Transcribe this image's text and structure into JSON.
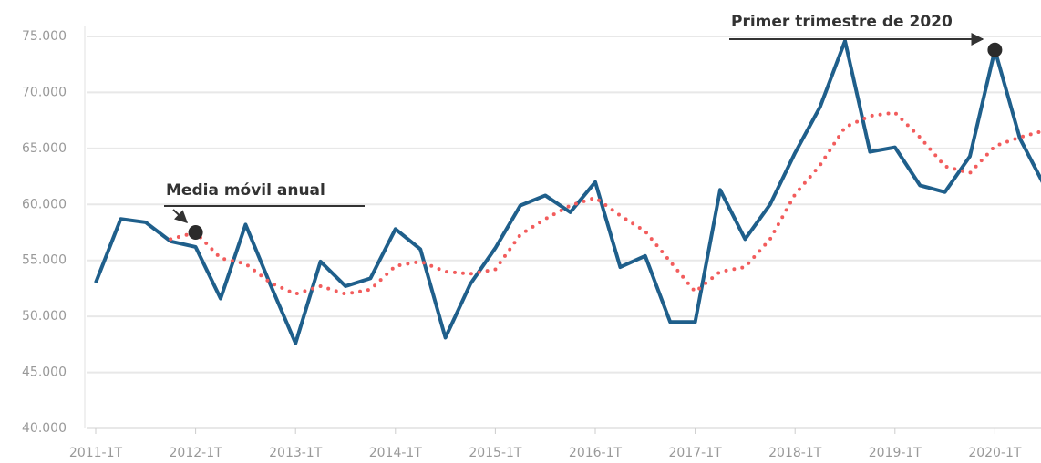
{
  "chart_data": {
    "type": "line",
    "categories": [
      "2011-1T",
      null,
      null,
      null,
      "2012-1T",
      null,
      null,
      null,
      "2013-1T",
      null,
      null,
      null,
      "2014-1T",
      null,
      null,
      null,
      "2015-1T",
      null,
      null,
      null,
      "2016-1T",
      null,
      null,
      null,
      "2017-1T",
      null,
      null,
      null,
      "2018-1T",
      null,
      null,
      null,
      "2019-1T",
      null,
      null,
      null,
      "2020-1T",
      null,
      null
    ],
    "series": [
      {
        "color": "#1f5f8b",
        "style": "solid",
        "values": [
          53000,
          58700,
          58400,
          56700,
          56200,
          51600,
          58200,
          52800,
          47600,
          54900,
          52700,
          53400,
          57800,
          56000,
          48100,
          52900,
          56100,
          59900,
          60800,
          59300,
          62000,
          54400,
          55400,
          49500,
          49500,
          61300,
          56900,
          60000,
          64600,
          68700,
          74600,
          64700,
          65100,
          61700,
          61100,
          64300,
          73800,
          65900,
          61600
        ]
      },
      {
        "color": "#f25c5c",
        "style": "dotted",
        "values": [
          null,
          null,
          null,
          56900,
          57500,
          55200,
          54700,
          53000,
          52000,
          52700,
          52000,
          52400,
          54500,
          54900,
          54000,
          53800,
          54200,
          57300,
          58700,
          59900,
          60600,
          59000,
          57600,
          54900,
          52200,
          54000,
          54400,
          56900,
          60900,
          63500,
          66900,
          67900,
          68200,
          66000,
          63400,
          62800,
          65200,
          66000,
          66600
        ]
      }
    ],
    "ylim": [
      40000,
      75000
    ],
    "yticks": [
      {
        "value": 40000,
        "label": "40.000"
      },
      {
        "value": 45000,
        "label": "45.000"
      },
      {
        "value": 50000,
        "label": "50.000"
      },
      {
        "value": 55000,
        "label": "55.000"
      },
      {
        "value": 60000,
        "label": "60.000"
      },
      {
        "value": 65000,
        "label": "65.000"
      },
      {
        "value": 70000,
        "label": "70.000"
      },
      {
        "value": 75000,
        "label": "75.000"
      }
    ],
    "grid": true,
    "annotations": [
      {
        "text": "Media móvil anual"
      },
      {
        "text": "Primer trimestre de 2020"
      }
    ]
  }
}
